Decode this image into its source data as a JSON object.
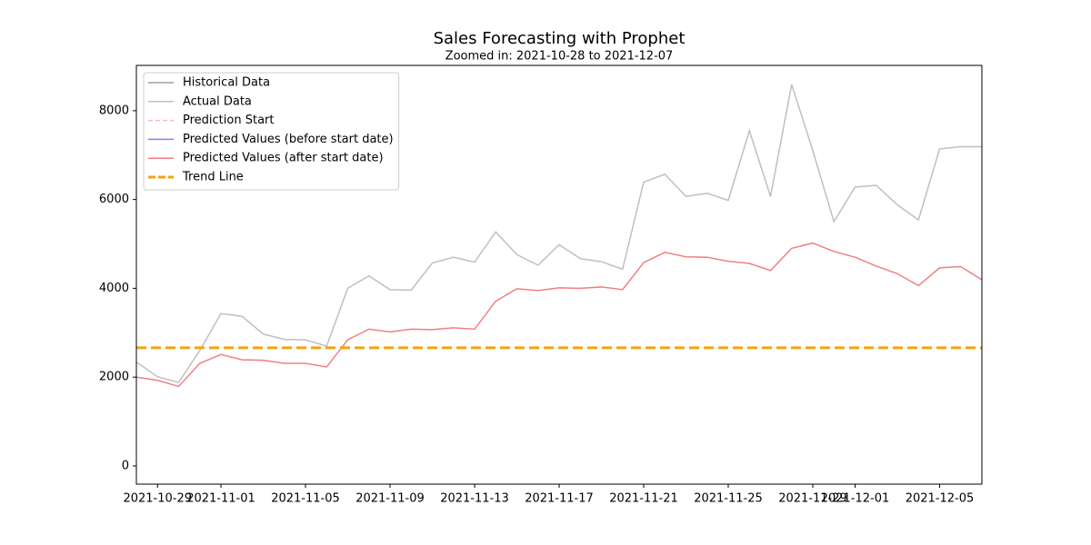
{
  "chart_data": {
    "type": "line",
    "title": "Sales Forecasting with Prophet",
    "subtitle": "Zoomed in: 2021-10-28 to 2021-12-07",
    "x": [
      "2021-10-28",
      "2021-10-29",
      "2021-10-30",
      "2021-10-31",
      "2021-11-01",
      "2021-11-02",
      "2021-11-03",
      "2021-11-04",
      "2021-11-05",
      "2021-11-06",
      "2021-11-07",
      "2021-11-08",
      "2021-11-09",
      "2021-11-10",
      "2021-11-11",
      "2021-11-12",
      "2021-11-13",
      "2021-11-14",
      "2021-11-15",
      "2021-11-16",
      "2021-11-17",
      "2021-11-18",
      "2021-11-19",
      "2021-11-20",
      "2021-11-21",
      "2021-11-22",
      "2021-11-23",
      "2021-11-24",
      "2021-11-25",
      "2021-11-26",
      "2021-11-27",
      "2021-11-28",
      "2021-11-29",
      "2021-11-30",
      "2021-12-01",
      "2021-12-02",
      "2021-12-03",
      "2021-12-04",
      "2021-12-05",
      "2021-12-06",
      "2021-12-07"
    ],
    "series": [
      {
        "name": "Historical Data",
        "color": "#a0a0a0",
        "values": [
          null,
          null,
          null,
          null,
          null,
          null,
          null,
          null,
          null,
          null,
          null,
          null,
          null,
          null,
          null,
          null,
          null,
          null,
          null,
          null,
          null,
          null,
          null,
          null,
          null,
          null,
          null,
          null,
          null,
          null,
          null,
          null,
          null,
          null,
          null,
          null,
          null,
          null,
          null,
          null,
          null
        ]
      },
      {
        "name": "Actual Data",
        "color": "#c0bec4",
        "values": [
          2340,
          2010,
          1880,
          2600,
          3430,
          3370,
          2970,
          2850,
          2840,
          2700,
          4000,
          4280,
          3970,
          3960,
          4570,
          4700,
          4590,
          5270,
          4760,
          4520,
          4980,
          4670,
          4600,
          4430,
          6390,
          6570,
          6070,
          6140,
          5980,
          7550,
          6070,
          8590,
          7100,
          5500,
          6280,
          6320,
          5880,
          5540,
          7140,
          7190,
          7190
        ]
      },
      {
        "name": "Predicted Values (before start date)",
        "color": "#8080f0",
        "values": [
          null,
          null,
          null,
          null,
          null,
          null,
          null,
          null,
          null,
          null,
          null,
          null,
          null,
          null,
          null,
          null,
          null,
          null,
          null,
          null,
          null,
          null,
          null,
          null,
          null,
          null,
          null,
          null,
          null,
          null,
          null,
          null,
          null,
          null,
          null,
          null,
          null,
          null,
          null,
          null,
          null
        ]
      },
      {
        "name": "Predicted Values (after start date)",
        "color": "#f08080",
        "values": [
          2000,
          1930,
          1790,
          2310,
          2510,
          2390,
          2380,
          2310,
          2310,
          2230,
          2840,
          3080,
          3020,
          3080,
          3070,
          3110,
          3080,
          3710,
          3990,
          3950,
          4010,
          4000,
          4030,
          3970,
          4580,
          4810,
          4710,
          4700,
          4610,
          4560,
          4400,
          4900,
          5020,
          4830,
          4700,
          4500,
          4330,
          4060,
          4460,
          4490,
          4190
        ]
      }
    ],
    "prediction_start": {
      "name": "Prediction Start",
      "color": "#ffb6c1"
    },
    "trend_line": {
      "name": "Trend Line",
      "color": "#f5a30f",
      "value": 2660
    },
    "xlim": [
      "2021-10-28",
      "2021-12-07"
    ],
    "xticks": [
      "2021-10-29",
      "2021-11-01",
      "2021-11-05",
      "2021-11-09",
      "2021-11-13",
      "2021-11-17",
      "2021-11-21",
      "2021-11-25",
      "2021-11-29",
      "2021-12-01",
      "2021-12-05"
    ],
    "ylim": [
      -410,
      9020
    ],
    "yticks": [
      0,
      2000,
      4000,
      6000,
      8000
    ],
    "legend": "upper left"
  }
}
